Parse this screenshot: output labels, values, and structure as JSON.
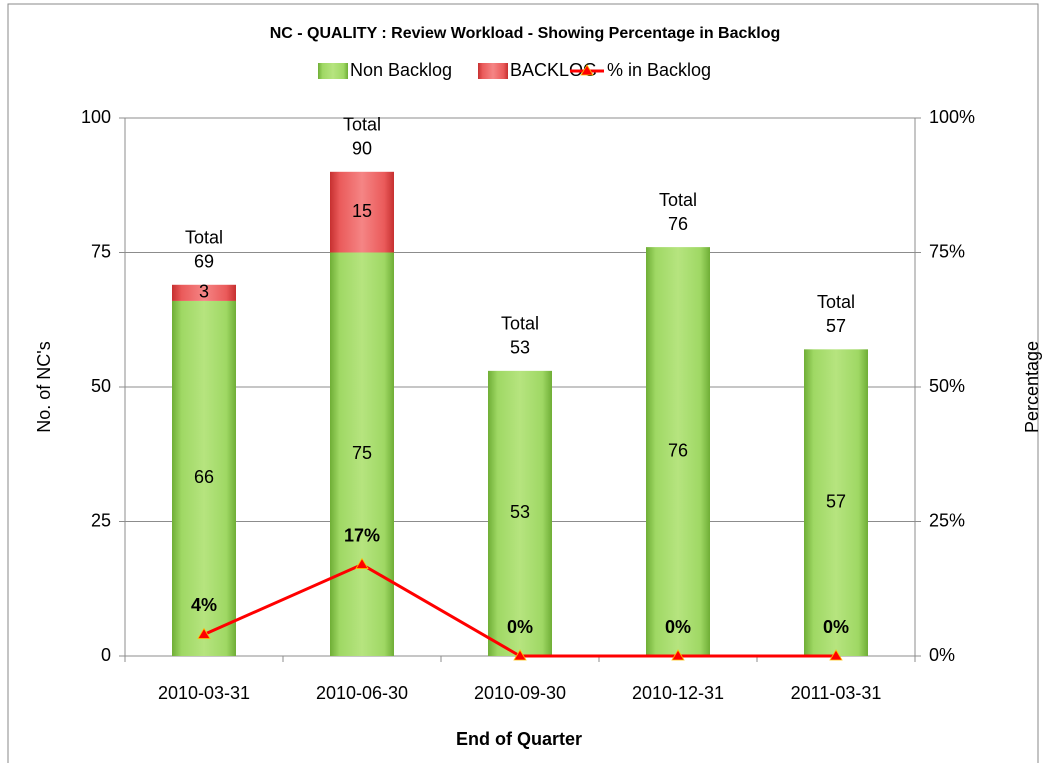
{
  "chart_data": {
    "type": "bar",
    "stacked": true,
    "title": "NC - QUALITY :  Review Workload - Showing Percentage in Backlog",
    "x_label": "End of Quarter",
    "y_label": "No. of NC's",
    "y2_label": "Percentage",
    "categories": [
      "2010-03-31",
      "2010-06-30",
      "2010-09-30",
      "2010-12-31",
      "2011-03-31"
    ],
    "series": [
      {
        "name": "Non Backlog",
        "color": "#92d050",
        "values": [
          66,
          75,
          53,
          76,
          57
        ]
      },
      {
        "name": "BACKLOG",
        "color": "#e84c4c",
        "values": [
          3,
          15,
          0,
          0,
          0
        ]
      },
      {
        "name": "% in Backlog",
        "type": "line",
        "axis": "y2",
        "color": "#ff0000",
        "values": [
          4,
          17,
          0,
          0,
          0
        ],
        "value_labels": [
          "4%",
          "17%",
          "0%",
          "0%",
          "0%"
        ]
      }
    ],
    "total_label": "Total",
    "totals": [
      69,
      90,
      53,
      76,
      57
    ],
    "ylim": [
      0,
      100
    ],
    "yticks": [
      0,
      25,
      50,
      75,
      100
    ],
    "y2lim": [
      0,
      100
    ],
    "y2ticks": [
      {
        "value": 0,
        "label": "0%"
      },
      {
        "value": 25,
        "label": "25%"
      },
      {
        "value": 50,
        "label": "50%"
      },
      {
        "value": 75,
        "label": "75%"
      },
      {
        "value": 100,
        "label": "100%"
      }
    ],
    "grid": true,
    "legend": "top"
  }
}
